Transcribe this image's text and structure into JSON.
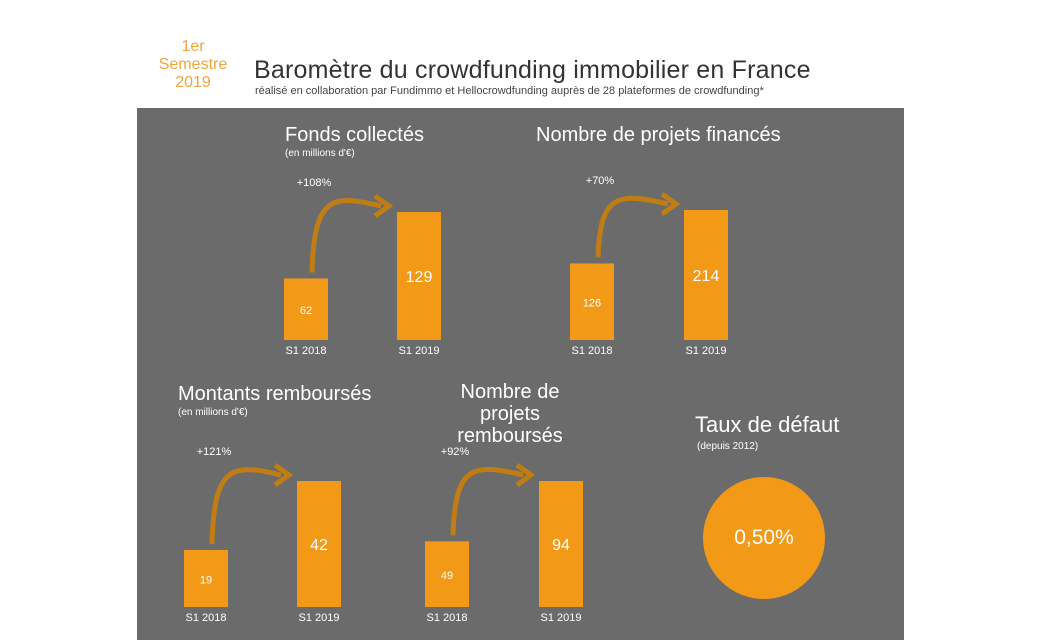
{
  "header": {
    "semestre_line1": "1er",
    "semestre_line2": "Semestre",
    "semestre_line3": "2019",
    "title": "Baromètre du crowdfunding immobilier en France",
    "subtitle": "réalisé en collaboration par Fundimmo et Hellocrowdfunding auprès de 28 plateformes de crowdfunding*"
  },
  "colors": {
    "panel": "#6b6b6b",
    "bar": "#f29a18",
    "arrow": "#c07d14",
    "accent": "#f0a53a"
  },
  "panels": {
    "fonds": {
      "title": "Fonds collectés",
      "note": "(en millions d'€)"
    },
    "projets": {
      "title": "Nombre de projets financés"
    },
    "montants": {
      "title": "Montants remboursés",
      "note": "(en millions d'€)"
    },
    "rembourses": {
      "title_line1": "Nombre de projets",
      "title_line2": "remboursés"
    },
    "defaut": {
      "title": "Taux de défaut",
      "note": "(depuis 2012)",
      "value": "0,50%"
    }
  },
  "chart_data": [
    {
      "type": "bar",
      "title": "Fonds collectés",
      "subtitle": "(en millions d'€)",
      "categories": [
        "S1 2018",
        "S1 2019"
      ],
      "values": [
        62,
        129
      ],
      "value_labels": [
        "62",
        "129"
      ],
      "change": "+108%"
    },
    {
      "type": "bar",
      "title": "Nombre de projets financés",
      "categories": [
        "S1 2018",
        "S1 2019"
      ],
      "values": [
        126,
        214
      ],
      "value_labels": [
        "126",
        "214"
      ],
      "change": "+70%"
    },
    {
      "type": "bar",
      "title": "Montants remboursés",
      "subtitle": "(en millions d'€)",
      "categories": [
        "S1 2018",
        "S1 2019"
      ],
      "values": [
        19,
        42
      ],
      "value_labels": [
        "19",
        "42"
      ],
      "change": "+121%"
    },
    {
      "type": "bar",
      "title": "Nombre de projets remboursés",
      "categories": [
        "S1 2018",
        "S1 2019"
      ],
      "values": [
        49,
        94
      ],
      "value_labels": [
        "49",
        "94"
      ],
      "change": "+92%"
    }
  ]
}
